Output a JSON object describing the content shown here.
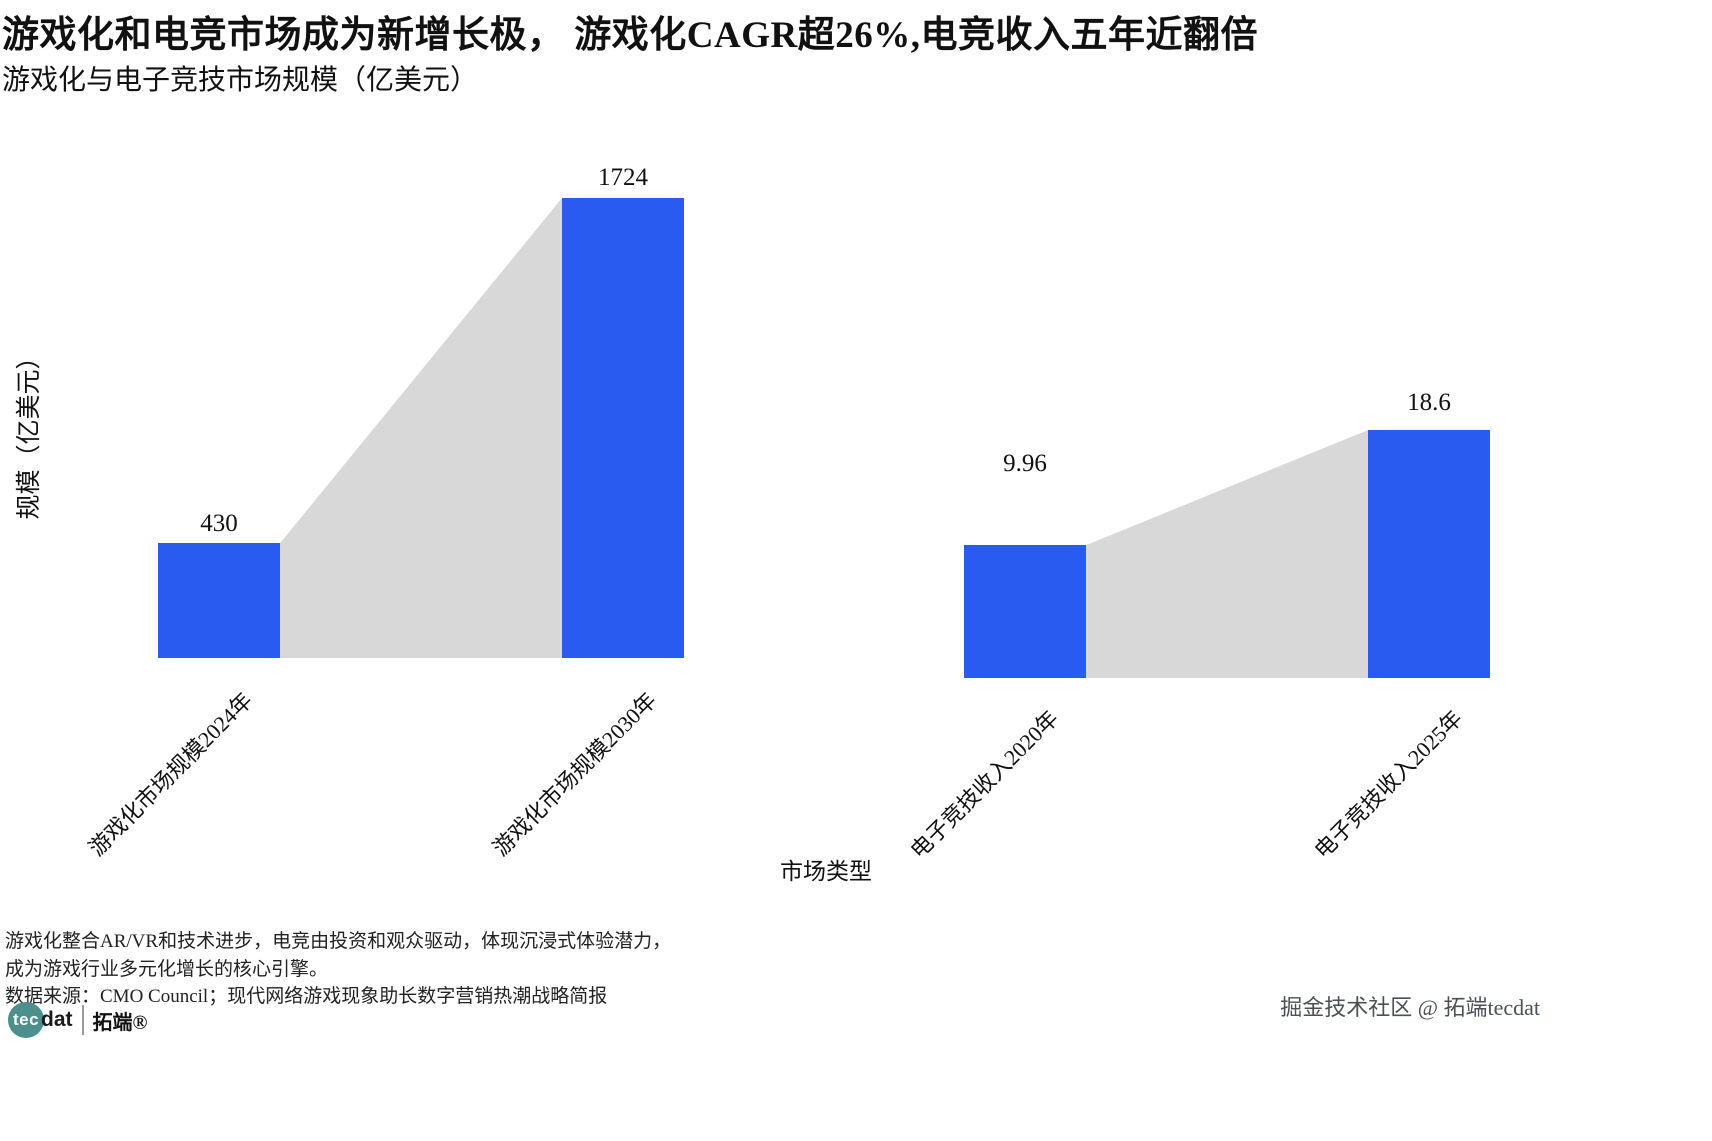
{
  "header": {
    "title": "游戏化和电竞市场成为新增长极， 游戏化CAGR超26%,电竞收入五年近翻倍",
    "subtitle": "游戏化与电子竞技市场规模（亿美元）"
  },
  "chart_data": {
    "type": "bar",
    "title": "游戏化与电子竞技市场规模（亿美元）",
    "xlabel": "市场类型",
    "ylabel": "规模（亿美元）",
    "categories": [
      "游戏化市场规模2024年",
      "游戏化市场规模2030年",
      "电子竞技收入2020年",
      "电子竞技收入2025年"
    ],
    "values": [
      430,
      1724,
      9.96,
      18.6
    ],
    "value_labels": [
      "430",
      "1724",
      "9.96",
      "18.6"
    ],
    "series_groups": [
      {
        "name": "游戏化市场规模",
        "categories": [
          "2024年",
          "2030年"
        ],
        "values": [
          430,
          1724
        ]
      },
      {
        "name": "电子竞技收入",
        "categories": [
          "2020年",
          "2025年"
        ],
        "values": [
          9.96,
          18.6
        ]
      }
    ],
    "bar_color": "#2a5bf0",
    "connector_color": "#d8d8d8",
    "grid": false,
    "legend": false,
    "layout_hint": "each pair of bars scaled independently; gray growth wedge connects bar tops within each pair"
  },
  "footnotes": {
    "line1": "游戏化整合AR/VR和技术进步，电竞由投资和观众驱动，体现沉浸式体验潜力，",
    "line2": "成为游戏行业多元化增长的核心引擎。",
    "line3": "数据来源：CMO Council；现代网络游戏现象助长数字营销热潮战略简报"
  },
  "logo": {
    "circle_text": "tec",
    "suffix": "dat",
    "brand": "拓端®",
    "circle_color": "#4d8f8c"
  },
  "watermark": "掘金技术社区 @ 拓端tecdat"
}
